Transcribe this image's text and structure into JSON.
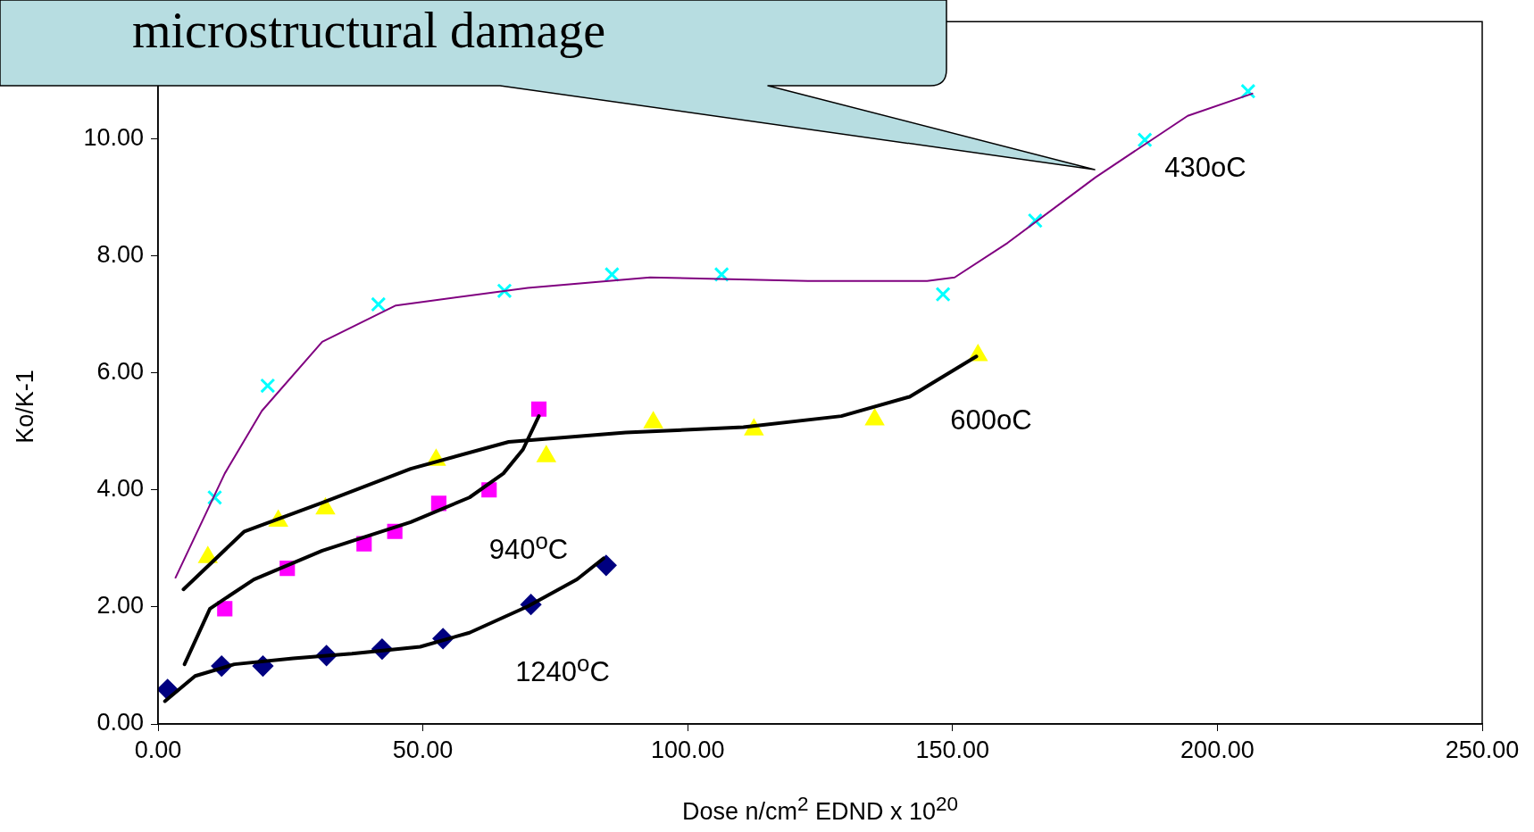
{
  "chart_data": {
    "type": "scatter",
    "xlabel": "Dose n/cm$^{2}$ EDND x 10$^{20}$",
    "ylabel": "Ko/K-1",
    "xlim": [
      0,
      250
    ],
    "xticks": [
      {
        "value": 0,
        "label": "0.00"
      },
      {
        "value": 50,
        "label": "50.00"
      },
      {
        "value": 100,
        "label": "100.00"
      },
      {
        "value": 150,
        "label": "150.00"
      },
      {
        "value": 200,
        "label": "200.00"
      },
      {
        "value": 250,
        "label": "250.00"
      }
    ],
    "ylim": [
      0,
      12
    ],
    "yticks": [
      {
        "value": 0,
        "label": "0.00"
      },
      {
        "value": 2,
        "label": "2.00"
      },
      {
        "value": 4,
        "label": "4.00"
      },
      {
        "value": 6,
        "label": "6.00"
      },
      {
        "value": 8,
        "label": "8.00"
      },
      {
        "value": 10,
        "label": "10.00"
      }
    ],
    "grid": false,
    "legend": false,
    "series": [
      {
        "type": "line",
        "color": "#800080",
        "marker": "none",
        "x": [
          3.3,
          12.6,
          19.6,
          31.0,
          44.9,
          69.8,
          92.9,
          122.7,
          145.2,
          150.4,
          160.4,
          177.0,
          194.4,
          206.6
        ],
        "values": [
          2.5,
          4.28,
          5.35,
          6.53,
          7.15,
          7.45,
          7.63,
          7.57,
          7.57,
          7.63,
          8.22,
          9.34,
          10.39,
          10.77
        ]
      },
      {
        "name": "430oC",
        "color": "#00ffff",
        "marker": "cross",
        "x": [
          10.7,
          20.7,
          41.6,
          65.4,
          85.7,
          106.4,
          148.2,
          165.6,
          186.3,
          205.8
        ],
        "values": [
          3.87,
          5.78,
          7.17,
          7.4,
          7.68,
          7.68,
          7.34,
          8.6,
          9.98,
          10.81
        ]
      },
      {
        "type": "line",
        "color": "#000000",
        "marker": "none",
        "x": [
          4.8,
          16.3,
          31.0,
          47.7,
          66.2,
          88.3,
          110.5,
          129.0,
          141.9,
          154.5
        ],
        "values": [
          2.3,
          3.29,
          3.78,
          4.36,
          4.82,
          4.98,
          5.07,
          5.26,
          5.59,
          6.28
        ]
      },
      {
        "name": "600oC",
        "color": "#ffff00",
        "marker": "triangle",
        "x": [
          9.4,
          22.7,
          31.6,
          52.5,
          73.3,
          93.5,
          112.5,
          135.3,
          154.8
        ],
        "values": [
          2.85,
          3.47,
          3.68,
          4.51,
          4.57,
          5.15,
          5.03,
          5.2,
          6.3
        ]
      },
      {
        "type": "line",
        "color": "#000000",
        "marker": "none",
        "x": [
          5.0,
          9.8,
          18.1,
          31.0,
          47.7,
          58.8,
          65.2,
          68.9,
          71.9
        ],
        "values": [
          1.02,
          1.97,
          2.47,
          2.96,
          3.45,
          3.87,
          4.28,
          4.69,
          5.26
        ]
      },
      {
        "name": "940$^{o}$C",
        "color": "#ff00ff",
        "marker": "square",
        "x": [
          12.6,
          24.4,
          38.9,
          44.7,
          53.0,
          62.5,
          71.9
        ],
        "values": [
          1.97,
          2.66,
          3.08,
          3.29,
          3.77,
          4.0,
          5.38
        ]
      },
      {
        "type": "line",
        "color": "#000000",
        "marker": "none",
        "x": [
          1.3,
          7.0,
          14.4,
          25.5,
          36.6,
          49.5,
          58.8,
          69.8,
          79.1,
          84.1
        ],
        "values": [
          0.39,
          0.82,
          1.02,
          1.12,
          1.2,
          1.32,
          1.56,
          2.01,
          2.47,
          2.83
        ]
      },
      {
        "name": "1240$^{o}$C",
        "color": "#000080",
        "marker": "diamond",
        "x": [
          1.8,
          12.0,
          19.8,
          31.8,
          42.3,
          53.8,
          70.4,
          84.6
        ],
        "values": [
          0.59,
          0.99,
          0.99,
          1.17,
          1.28,
          1.46,
          2.04,
          2.71
        ]
      }
    ],
    "annotations": [
      "microstructural damage"
    ]
  }
}
